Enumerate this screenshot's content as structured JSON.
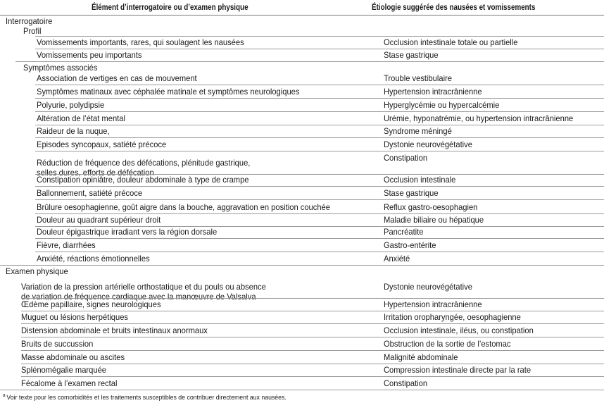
{
  "table": {
    "headers": [
      "Élément d’interrogatoire ou d’examen physique",
      "Étiologie suggérée des nausées et vomissements"
    ],
    "sections": [
      {
        "title": "Interrogatoire",
        "groups": [
          {
            "title": "Profil",
            "rows": [
              [
                "Vomissements importants, rares, qui soulagent les nausées",
                "Occlusion intestinale totale ou partielle"
              ],
              [
                "Vomissements peu importants",
                "Stase gastrique"
              ]
            ]
          },
          {
            "title": "Symptômes associés",
            "rows": [
              [
                "Association de vertiges en cas de mouvement",
                "Trouble vestibulaire"
              ],
              [
                "Symptômes matinaux avec céphalée matinale et  symptômes neurologiques",
                "Hypertension intracrânienne"
              ],
              [
                "Polyurie, polydipsie",
                "Hyperglycémie ou hypercalcémie"
              ],
              [
                "Altération de l’état mental",
                "Urémie, hyponatrémie, ou hypertension intracrânienne"
              ],
              [
                "Raideur de la nuque,",
                "Syndrome méningé"
              ],
              [
                "Episodes syncopaux, satiété précoce",
                "Dystonie neurovégétative"
              ],
              [
                "Réduction de fréquence des défécations, plénitude gastrique,\n selles dures, efforts de défécation",
                "Constipation"
              ],
              [
                "Constipation opiniâtre, douleur abdominale à type de crampe",
                "Occlusion intestinale"
              ],
              [
                "Ballonnement, satiété précoce",
                "Stase gastrique"
              ],
              [
                "Brûlure oesophagienne, goût aigre dans la bouche, aggravation en position couchée",
                "Reflux gastro-oesophagien"
              ],
              [
                "Douleur au quadrant supérieur droit",
                "Maladie biliaire ou hépatique"
              ],
              [
                "Douleur épigastrique irradiant vers la région dorsale",
                "Pancréatite"
              ],
              [
                "Fièvre, diarrhées",
                "Gastro-entérite"
              ],
              [
                "Anxiété, réactions émotionnelles",
                "Anxiété"
              ]
            ]
          }
        ]
      },
      {
        "title": "Examen physique",
        "groups": [
          {
            "title": "",
            "rows": [
              [
                "Variation de la pression artérielle orthostatique et du pouls ou absence\nde variation de fréquence cardiaque avec la manœuvre de Valsalva",
                "Dystonie neurovégétative"
              ],
              [
                "Œdème papillaire, signes neurologiques",
                "Hypertension intracrânienne"
              ],
              [
                "Muguet ou lésions herpétiques",
                "Irritation oropharyngée, oesophagienne"
              ],
              [
                "Distension abdominale et bruits intestinaux anormaux",
                "Occlusion intestinale, iléus, ou constipation"
              ],
              [
                "Bruits de succussion",
                "Obstruction de la sortie de l’estomac"
              ],
              [
                "Masse abdominale ou ascites",
                "Malignité abdominale"
              ],
              [
                "Splénomégalie marquée",
                "Compression intestinale directe par la rate"
              ],
              [
                "Fécalome à l’examen rectal",
                "Constipation"
              ]
            ]
          }
        ]
      }
    ]
  },
  "footnote": {
    "marker": "a",
    "text": "Voir texte pour les comorbidités et les traitements susceptibles de contribuer directement aux nausées."
  }
}
